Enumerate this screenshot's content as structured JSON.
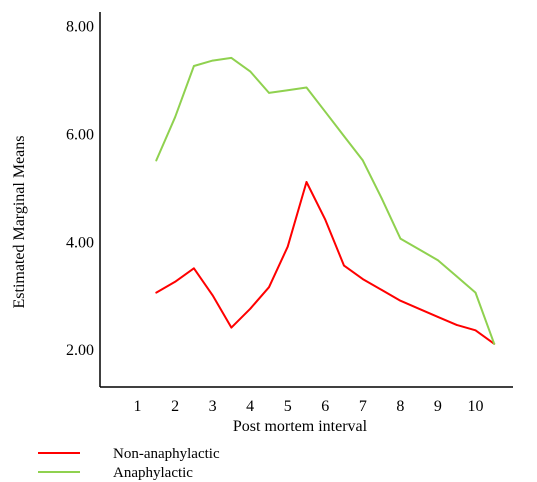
{
  "chart_data": {
    "type": "line",
    "title": "",
    "xlabel": "Post mortem interval",
    "ylabel": "Estimated Marginal Means",
    "x_ticks": [
      "1",
      "2",
      "3",
      "4",
      "5",
      "6",
      "7",
      "8",
      "9",
      "10"
    ],
    "y_ticks": [
      "2.00",
      "4.00",
      "6.00",
      "8.00"
    ],
    "xlim": [
      0.0,
      11.0
    ],
    "ylim": [
      1.3,
      8.25
    ],
    "grid": false,
    "legend_position": "bottom-left",
    "series": [
      {
        "name": "Non-anaphylactic",
        "color": "#ff0000",
        "x": [
          1.5,
          2.0,
          2.5,
          3.0,
          3.5,
          4.0,
          4.5,
          5.0,
          5.5,
          6.0,
          6.5,
          7.0,
          7.5,
          8.0,
          8.5,
          9.0,
          9.5,
          10.0,
          10.5
        ],
        "y": [
          3.05,
          3.25,
          3.5,
          3.0,
          2.4,
          2.75,
          3.15,
          3.9,
          5.1,
          4.4,
          3.55,
          3.3,
          3.1,
          2.9,
          2.75,
          2.6,
          2.45,
          2.35,
          2.1
        ]
      },
      {
        "name": "Anaphylactic",
        "color": "#8fd14f",
        "x": [
          1.5,
          2.0,
          2.5,
          3.0,
          3.5,
          4.0,
          4.5,
          5.0,
          5.5,
          6.0,
          6.5,
          7.0,
          7.5,
          8.0,
          8.5,
          9.0,
          9.5,
          10.0,
          10.5
        ],
        "y": [
          5.5,
          6.3,
          7.25,
          7.35,
          7.4,
          7.15,
          6.75,
          6.8,
          6.85,
          6.4,
          5.95,
          5.5,
          4.8,
          4.05,
          3.85,
          3.65,
          3.35,
          3.05,
          2.1
        ]
      }
    ]
  }
}
